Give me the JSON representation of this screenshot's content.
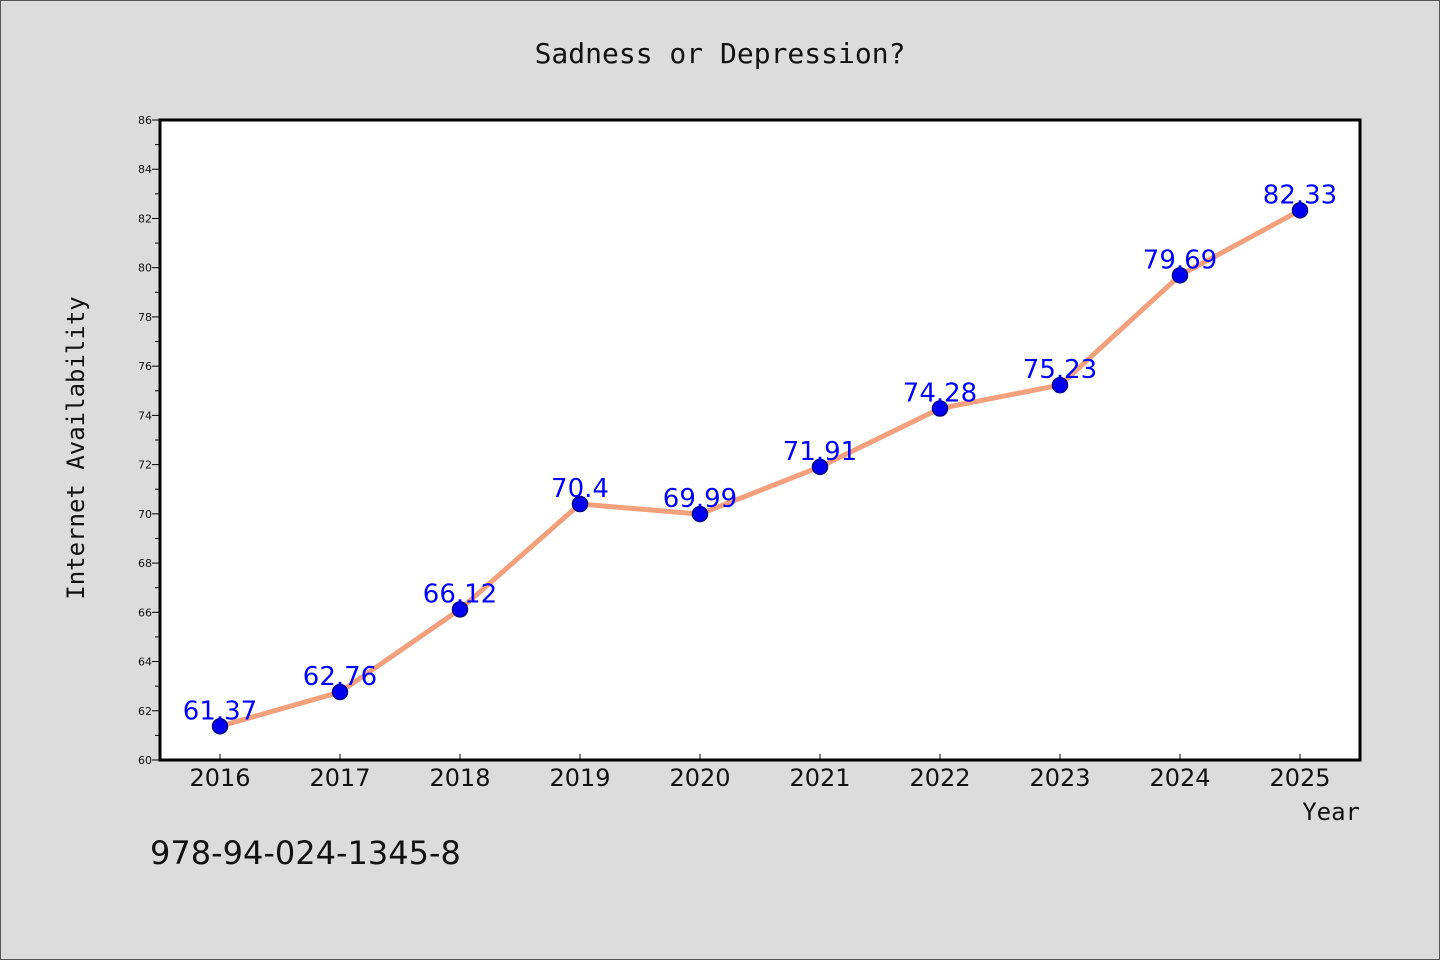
{
  "chart_data": {
    "type": "line",
    "title": "Sadness or Depression?",
    "xlabel": "Year",
    "ylabel": "Internet Availability",
    "categories": [
      "2016",
      "2017",
      "2018",
      "2019",
      "2020",
      "2021",
      "2022",
      "2023",
      "2024",
      "2025"
    ],
    "series": [
      {
        "values": [
          61.37,
          62.76,
          66.12,
          70.4,
          69.99,
          71.91,
          74.28,
          75.23,
          79.69,
          82.33
        ]
      }
    ],
    "data_labels": [
      "61.37",
      "62.76",
      "66.12",
      "70.4",
      "69.99",
      "71.91",
      "74.28",
      "75.23",
      "79.69",
      "82.33"
    ],
    "ylim": [
      60,
      86
    ],
    "yticks": [
      "60",
      "62",
      "64",
      "66",
      "68",
      "70",
      "72",
      "74",
      "76",
      "78",
      "80",
      "82",
      "84",
      "86"
    ],
    "grid": false,
    "legend": "none",
    "colors": {
      "line": "#f4a07c",
      "marker": "#0000ee",
      "marker_edge": "#00008b",
      "label": "#0000ff",
      "plot_bg": "#ffffff",
      "page_bg": "#dcdcdc"
    }
  },
  "footer": {
    "isbn": "978-94-024-1345-8"
  }
}
